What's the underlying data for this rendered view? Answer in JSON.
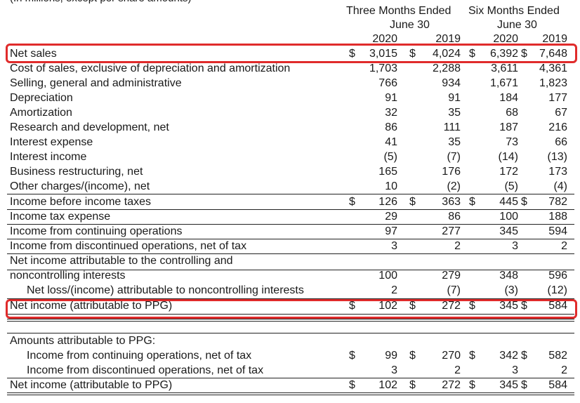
{
  "header": {
    "clipped_text": "(In millions, except per share amounts)",
    "group_three": [
      "Three Months Ended",
      "June 30"
    ],
    "group_six": [
      "Six Months Ended",
      "June 30"
    ],
    "years": [
      "2020",
      "2019",
      "2020",
      "2019"
    ]
  },
  "rows": [
    {
      "label": "Net sales",
      "dollar": [
        true,
        true,
        true,
        true
      ],
      "values": [
        "3,015",
        "4,024",
        "6,392",
        "7,648"
      ],
      "highlight": true
    },
    {
      "label": "Cost of sales, exclusive of depreciation and amortization",
      "values": [
        "1,703",
        "2,288",
        "3,611",
        "4,361"
      ]
    },
    {
      "label": "Selling, general and administrative",
      "values": [
        "766",
        "934",
        "1,671",
        "1,823"
      ]
    },
    {
      "label": "Depreciation",
      "values": [
        "91",
        "91",
        "184",
        "177"
      ]
    },
    {
      "label": "Amortization",
      "values": [
        "32",
        "35",
        "68",
        "67"
      ]
    },
    {
      "label": "Research and development, net",
      "values": [
        "86",
        "111",
        "187",
        "216"
      ]
    },
    {
      "label": "Interest expense",
      "values": [
        "41",
        "35",
        "73",
        "66"
      ]
    },
    {
      "label": "Interest income",
      "values": [
        "(5)",
        "(7)",
        "(14)",
        "(13)"
      ]
    },
    {
      "label": "Business restructuring, net",
      "values": [
        "165",
        "176",
        "172",
        "173"
      ]
    },
    {
      "label": "Other charges/(income), net",
      "values": [
        "10",
        "(2)",
        "(5)",
        "(4)"
      ]
    },
    {
      "label": "Income before income taxes",
      "dollar": [
        true,
        true,
        true,
        true
      ],
      "values": [
        "126",
        "363",
        "445",
        "782"
      ]
    },
    {
      "label": "Income tax expense",
      "values": [
        "29",
        "86",
        "100",
        "188"
      ]
    },
    {
      "label": "Income from continuing operations",
      "values": [
        "97",
        "277",
        "345",
        "594"
      ]
    },
    {
      "label": "Income from discontinued operations, net of tax",
      "values": [
        "3",
        "2",
        "3",
        "2"
      ]
    },
    {
      "label": "Net income attributable to the controlling and",
      "values": [
        "",
        "",
        "",
        ""
      ]
    },
    {
      "label": "noncontrolling interests",
      "values": [
        "100",
        "279",
        "348",
        "596"
      ]
    },
    {
      "label": "Net loss/(income) attributable to noncontrolling interests",
      "indent": true,
      "values": [
        "2",
        "(7)",
        "(3)",
        "(12)"
      ]
    },
    {
      "label": "Net income (attributable to PPG)",
      "dollar": [
        true,
        true,
        true,
        true
      ],
      "values": [
        "102",
        "272",
        "345",
        "584"
      ],
      "highlight": true
    }
  ],
  "section2": {
    "heading": "Amounts attributable to PPG:",
    "rows": [
      {
        "label": "Income from continuing operations, net of tax",
        "indent": true,
        "dollar": [
          true,
          true,
          true,
          true
        ],
        "values": [
          "99",
          "270",
          "342",
          "582"
        ]
      },
      {
        "label": "Income from discontinued operations, net of tax",
        "indent": true,
        "values": [
          "3",
          "2",
          "3",
          "2"
        ]
      },
      {
        "label": "Net income (attributable to PPG)",
        "dollar": [
          true,
          true,
          true,
          true
        ],
        "values": [
          "102",
          "272",
          "345",
          "584"
        ]
      }
    ]
  },
  "colors": {
    "highlight_border": "#e02b2b",
    "text": "#1a1a1a",
    "rule": "#222222"
  }
}
